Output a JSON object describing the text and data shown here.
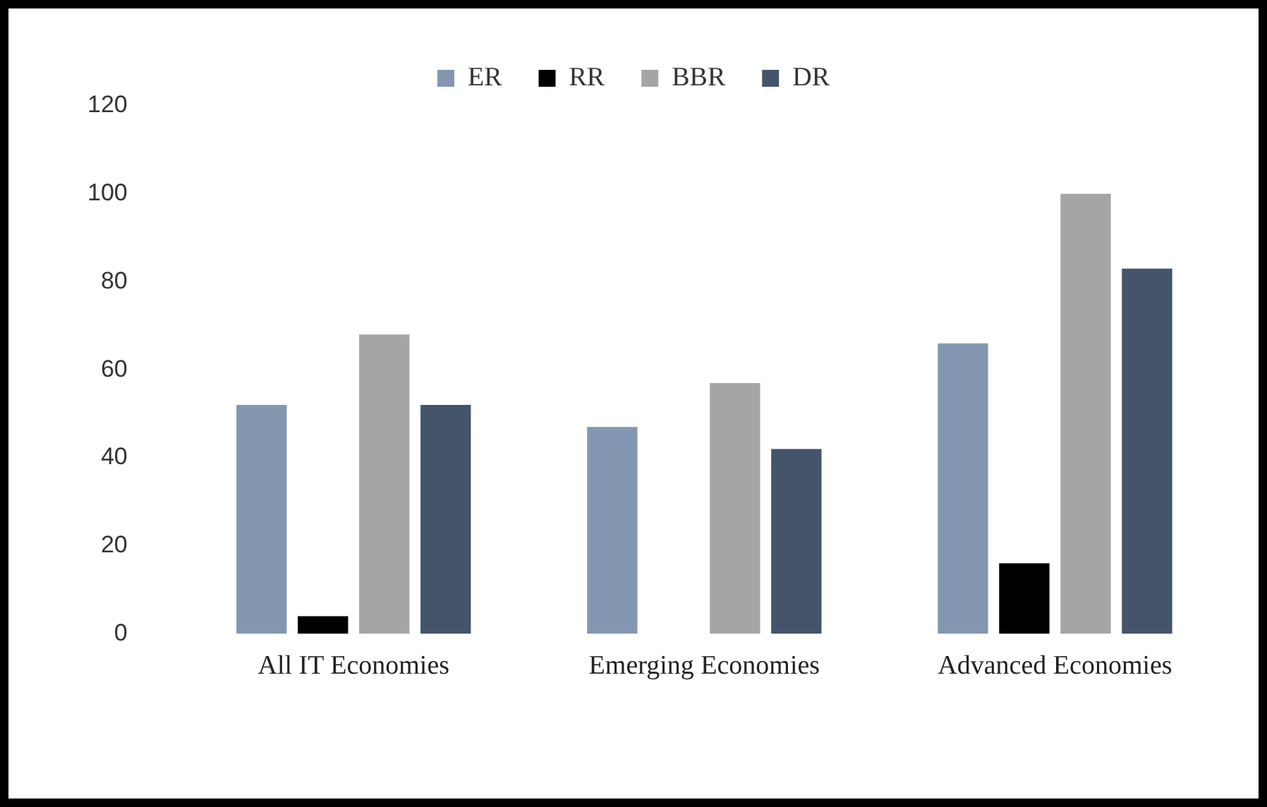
{
  "chart_data": {
    "type": "bar",
    "categories": [
      "All IT Economies",
      "Emerging Economies",
      "Advanced Economies"
    ],
    "series": [
      {
        "name": "ER",
        "color": "#8497b0",
        "values": [
          52,
          47,
          66
        ]
      },
      {
        "name": "RR",
        "color": "#000000",
        "values": [
          4,
          0,
          16
        ]
      },
      {
        "name": "BBR",
        "color": "#a5a5a5",
        "values": [
          68,
          57,
          100
        ]
      },
      {
        "name": "DR",
        "color": "#44546a",
        "values": [
          52,
          42,
          83
        ]
      }
    ],
    "ylim": [
      0,
      120
    ],
    "yticks": [
      0,
      20,
      40,
      60,
      80,
      100,
      120
    ],
    "grid": false,
    "legend": "top"
  }
}
